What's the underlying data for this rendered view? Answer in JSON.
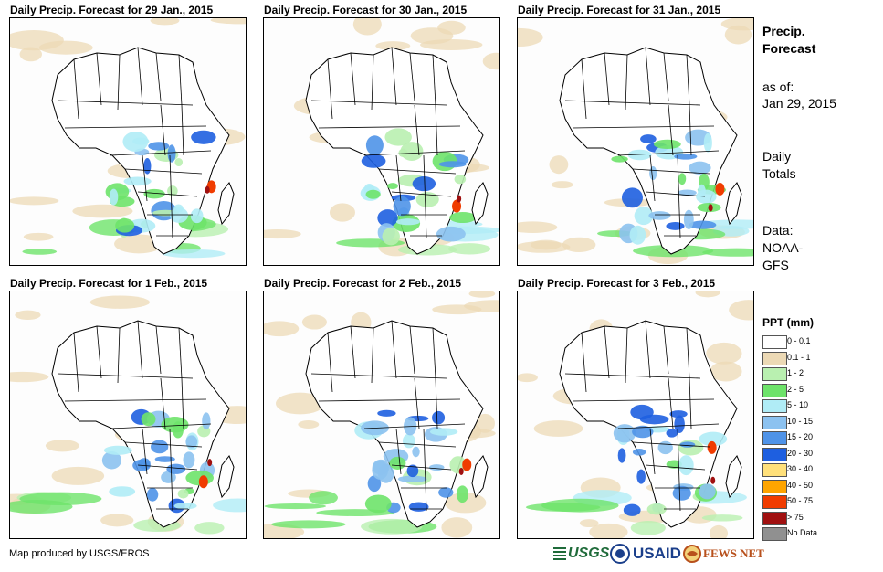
{
  "panels": [
    {
      "title": "Daily Precip. Forecast for 29 Jan., 2015"
    },
    {
      "title": "Daily Precip. Forecast for 30 Jan., 2015"
    },
    {
      "title": "Daily Precip. Forecast for 31 Jan., 2015"
    },
    {
      "title": "Daily Precip. Forecast for 1 Feb., 2015"
    },
    {
      "title": "Daily Precip. Forecast for 2 Feb., 2015"
    },
    {
      "title": "Daily Precip. Forecast for 3 Feb., 2015"
    }
  ],
  "sidebar": {
    "title_line1": "Precip.",
    "title_line2": "Forecast",
    "asof_label": "as of:",
    "asof_date": "Jan 29, 2015",
    "daily_line1": "Daily",
    "daily_line2": "Totals",
    "data_label": "Data:",
    "data_src1": "NOAA-",
    "data_src2": "GFS"
  },
  "legend": {
    "title": "PPT (mm)",
    "items": [
      {
        "label": "0 - 0.1",
        "color": "#ffffff"
      },
      {
        "label": "0.1 - 1",
        "color": "#ecd9b5"
      },
      {
        "label": "1 - 2",
        "color": "#b9f0b0"
      },
      {
        "label": "2 - 5",
        "color": "#6ee36a"
      },
      {
        "label": "5 - 10",
        "color": "#b0ecf6"
      },
      {
        "label": "10 - 15",
        "color": "#8cc2f0"
      },
      {
        "label": "15 - 20",
        "color": "#4f93e8"
      },
      {
        "label": "20 - 30",
        "color": "#1e5fe0"
      },
      {
        "label": "30 - 40",
        "color": "#ffe07a"
      },
      {
        "label": "40 - 50",
        "color": "#ffa500"
      },
      {
        "label": "50 - 75",
        "color": "#f03c00"
      },
      {
        "label": "> 75",
        "color": "#a01010"
      },
      {
        "label": "No Data",
        "color": "#909090"
      }
    ]
  },
  "footer": {
    "credit": "Map produced by USGS/EROS",
    "logo_usgs": "USGS",
    "logo_usaid": "USAID",
    "logo_fewsnet": "FEWS NET"
  }
}
